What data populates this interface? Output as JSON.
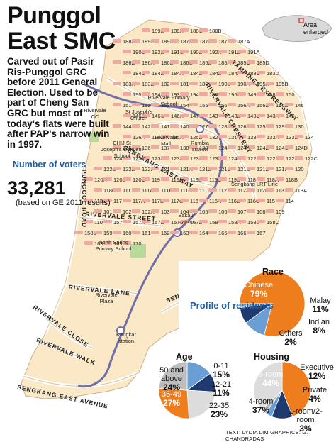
{
  "title_line1": "Punggol",
  "title_line2": "East SMC",
  "description": "Carved out of Pasir Ris-Punggol GRC before 2011 General Election. Used to be part of Cheng San GRC but most of today's flats were built after PAP's narrow win in 1997.",
  "voters": {
    "label": "Number of voters",
    "count": "33,281",
    "note": "(based on GE 2011 results)"
  },
  "inset_legend": "Area enlarged",
  "roads": {
    "tampines": "TAMPINES EXPRESSWAY",
    "rivervale_crescent": "RIVERVALE CRESCENT",
    "sengkang_east_way": "SENGKANG EAST WAY",
    "punggol_road": "PUNGGOL ROAD",
    "rivervale_street": "RIVERVALE STREET",
    "rivervale_lane": "RIVERVALE LANE",
    "rivervale_close": "RIVERVALE CLOSE",
    "rivervale_walk": "RIVERVALE WALK",
    "sengkang_east_avenue": "SENGKANG EAST AVENUE",
    "sengkang_east_drive": "SENGKANG EAST DRIVE",
    "sengkang_lrt": "Sengkang LRT Line"
  },
  "places": {
    "rivervale_cc": "Rivervale CC",
    "st_josephs": "St Joseph's Church",
    "rivervale_primary": "Rivervale Primary School",
    "chij": "CHIJ St Joseph's Convent School",
    "rivervale_mall": "Rivervale Mall",
    "rumbia": "Rumbia station",
    "bakau": "Bakau station",
    "north_spring": "North Spring Primary School",
    "rivervale_plaza": "Rivervale Plaza",
    "kangkar": "Kangkar station"
  },
  "blocks": [
    "189B",
    "189A",
    "188C",
    "188B",
    "188A",
    "189C",
    "189D",
    "187D",
    "187C",
    "187B",
    "187A",
    "190C",
    "192B",
    "191C",
    "190D",
    "192A",
    "191B",
    "191A",
    "186D",
    "186A",
    "186B",
    "186C",
    "185B",
    "185A",
    "185C",
    "185D",
    "184C",
    "184B",
    "184A",
    "184E",
    "184D",
    "184F",
    "183C",
    "183D",
    "183A",
    "183B",
    "182",
    "181",
    "180",
    "190B",
    "190A",
    "195A",
    "195B",
    "195",
    "194A",
    "193",
    "194",
    "196",
    "196A",
    "149",
    "148",
    "150",
    "151",
    "152",
    "153",
    "154",
    "155",
    "156",
    "156A",
    "156B",
    "156C",
    "146",
    "146B",
    "146C",
    "146A",
    "147",
    "143",
    "143B",
    "143C",
    "143A",
    "145",
    "144",
    "142",
    "141",
    "140",
    "127",
    "128",
    "126",
    "125",
    "129",
    "130",
    "126A",
    "126B",
    "125A",
    "125B",
    "132",
    "131",
    "133",
    "133A",
    "133B",
    "134",
    "135",
    "136",
    "137",
    "138",
    "139",
    "124",
    "124A",
    "124B",
    "124C",
    "124D",
    "124E",
    "123",
    "123A",
    "123B",
    "123C",
    "123D",
    "124F",
    "122",
    "122A",
    "122B",
    "122C",
    "122D",
    "122E",
    "122F",
    "121",
    "121A",
    "121B",
    "121C",
    "121D",
    "121E",
    "121F",
    "120",
    "120A",
    "120B",
    "120C",
    "119",
    "119A",
    "119B",
    "119C",
    "119D",
    "118",
    "118A",
    "118B",
    "118C",
    "111",
    "111A",
    "111B",
    "111C",
    "111D",
    "112",
    "112A",
    "112B",
    "113",
    "113A",
    "113B",
    "117",
    "117A",
    "117B",
    "117C",
    "116",
    "116A",
    "116B",
    "116C",
    "115",
    "114",
    "101",
    "102",
    "102A",
    "103",
    "104",
    "105",
    "106",
    "107",
    "108",
    "109",
    "110",
    "157",
    "157A",
    "157B",
    "157C",
    "157D",
    "158",
    "158A",
    "158B",
    "158C",
    "158D",
    "159",
    "160",
    "161",
    "162",
    "163",
    "164",
    "165",
    "166",
    "167",
    "168",
    "169",
    "170"
  ],
  "profile_label": "Profile of residents",
  "colors": {
    "orange": "#ee7d1e",
    "blue": "#6b9ed4",
    "grey": "#bdbdbd",
    "light_grey": "#dcdcdc",
    "navy": "#1f3a6e",
    "flat_pink": "#f0a9a0"
  },
  "race": {
    "title": "Race",
    "slices": [
      {
        "label": "Chinese",
        "value": "79%"
      },
      {
        "label": "Malay",
        "value": "11%"
      },
      {
        "label": "Indian",
        "value": "8%"
      },
      {
        "label": "Others",
        "value": "2%"
      }
    ]
  },
  "age": {
    "title": "Age",
    "slices": [
      {
        "label": "0-11",
        "value": "15%"
      },
      {
        "label": "12-21",
        "value": "11%"
      },
      {
        "label": "22-35",
        "value": "23%"
      },
      {
        "label": "36-49",
        "value": "27%"
      },
      {
        "label": "50 and above",
        "value": "24%"
      }
    ]
  },
  "housing": {
    "title": "Housing",
    "slices": [
      {
        "label": "5-room",
        "value": "44%"
      },
      {
        "label": "Executive",
        "value": "12%"
      },
      {
        "label": "Private",
        "value": "4%"
      },
      {
        "label": "1-room/2-room",
        "value": "3%"
      },
      {
        "label": "4-room",
        "value": "37%"
      }
    ]
  },
  "chart_data": [
    {
      "type": "pie",
      "title": "Race",
      "categories": [
        "Chinese",
        "Malay",
        "Indian",
        "Others"
      ],
      "values": [
        79,
        11,
        8,
        2
      ]
    },
    {
      "type": "pie",
      "title": "Age",
      "categories": [
        "0-11",
        "12-21",
        "22-35",
        "36-49",
        "50 and above"
      ],
      "values": [
        15,
        11,
        23,
        27,
        24
      ]
    },
    {
      "type": "pie",
      "title": "Housing",
      "categories": [
        "5-room",
        "Executive",
        "Private",
        "1-room/2-room",
        "4-room"
      ],
      "values": [
        44,
        12,
        4,
        3,
        37
      ]
    }
  ],
  "credit": "TEXT: LYDIA LIM   GRAPHICS: G. CHANDRADAS"
}
